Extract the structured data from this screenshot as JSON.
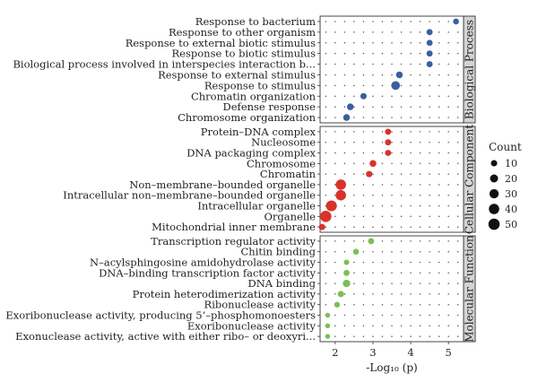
{
  "chart_data": {
    "type": "scatter",
    "subtype": "dot-plot",
    "xlabel": "-Log₁₀ (p)",
    "xlim": [
      1.6,
      5.4
    ],
    "xticks": [
      2,
      3,
      4,
      5
    ],
    "grid": "dotted",
    "legend": {
      "title": "Count",
      "placement": "right",
      "entries": [
        {
          "label": "10",
          "count": 10
        },
        {
          "label": "20",
          "count": 20
        },
        {
          "label": "30",
          "count": 30
        },
        {
          "label": "40",
          "count": 40
        },
        {
          "label": "50",
          "count": 50
        }
      ]
    },
    "panels": [
      {
        "name": "Biological Process",
        "color": "#3a5fa0",
        "terms": [
          {
            "term": "Response to bacterium",
            "x": 5.2,
            "count": 8
          },
          {
            "term": "Response to other organism",
            "x": 4.5,
            "count": 9
          },
          {
            "term": "Response to external biotic stimulus",
            "x": 4.5,
            "count": 9
          },
          {
            "term": "Response to biotic stimulus",
            "x": 4.5,
            "count": 9
          },
          {
            "term": "Biological process involved in interspecies interaction b...",
            "x": 4.5,
            "count": 9
          },
          {
            "term": "Response to external stimulus",
            "x": 3.7,
            "count": 12
          },
          {
            "term": "Response to stimulus",
            "x": 3.6,
            "count": 25
          },
          {
            "term": "Chromatin organization",
            "x": 2.75,
            "count": 10
          },
          {
            "term": "Defense response",
            "x": 2.4,
            "count": 12
          },
          {
            "term": "Chromosome organization",
            "x": 2.3,
            "count": 12
          }
        ]
      },
      {
        "name": "Cellular Component",
        "color": "#d8322a",
        "terms": [
          {
            "term": "Protein–DNA complex",
            "x": 3.4,
            "count": 9
          },
          {
            "term": "Nucleosome",
            "x": 3.4,
            "count": 9
          },
          {
            "term": "DNA packaging complex",
            "x": 3.4,
            "count": 9
          },
          {
            "term": "Chromosome",
            "x": 3.0,
            "count": 12
          },
          {
            "term": "Chromatin",
            "x": 2.9,
            "count": 10
          },
          {
            "term": "Non–membrane–bounded organelle",
            "x": 2.15,
            "count": 40
          },
          {
            "term": "Intracellular non–membrane–bounded organelle",
            "x": 2.15,
            "count": 40
          },
          {
            "term": "Intracellular organelle",
            "x": 1.9,
            "count": 45
          },
          {
            "term": "Organelle",
            "x": 1.75,
            "count": 50
          },
          {
            "term": "Mitochondrial inner membrane",
            "x": 1.65,
            "count": 10
          }
        ]
      },
      {
        "name": "Molecular Function",
        "color": "#7bbf55",
        "terms": [
          {
            "term": "Transcription regulator activity",
            "x": 2.95,
            "count": 9
          },
          {
            "term": "Chitin binding",
            "x": 2.55,
            "count": 8
          },
          {
            "term": "N–acylsphingosine amidohydrolase activity",
            "x": 2.3,
            "count": 6
          },
          {
            "term": "DNA–binding transcription factor activity",
            "x": 2.3,
            "count": 9
          },
          {
            "term": "DNA binding",
            "x": 2.3,
            "count": 16
          },
          {
            "term": "Protein heterodimerization activity",
            "x": 2.15,
            "count": 10
          },
          {
            "term": "Ribonuclease activity",
            "x": 2.05,
            "count": 7
          },
          {
            "term": "Exoribonuclease activity, producing 5’–phosphomonoesters",
            "x": 1.8,
            "count": 4
          },
          {
            "term": "Exoribonuclease activity",
            "x": 1.8,
            "count": 4
          },
          {
            "term": "Exonuclease activity, active with either ribo– or deoxyri...",
            "x": 1.8,
            "count": 4
          }
        ]
      }
    ]
  }
}
